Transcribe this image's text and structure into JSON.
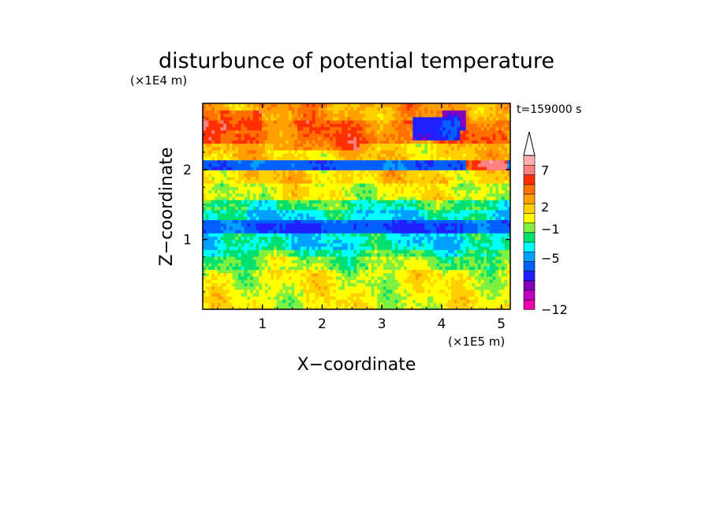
{
  "chart_data": {
    "type": "heatmap",
    "title": "disturbunce of potential temperature",
    "xlabel": "X−coordinate",
    "ylabel": "Z−coordinate",
    "x_scale_label": "(×1E5 m)",
    "y_scale_label": "(×1E4 m)",
    "time_label": "t=159000 s",
    "xlim": [
      0,
      5.15
    ],
    "ylim": [
      0,
      2.95
    ],
    "x_ticks": [
      1,
      2,
      3,
      4,
      5
    ],
    "x_tick_labels": [
      "1",
      "2",
      "3",
      "4",
      "5"
    ],
    "y_ticks": [
      1,
      2
    ],
    "y_tick_labels": [
      "1",
      "2"
    ],
    "colorbar": {
      "bands": [
        {
          "low": -12,
          "high": -11,
          "color": "#ee00aa"
        },
        {
          "low": -11,
          "high": -9,
          "color": "#c000c0"
        },
        {
          "low": -9,
          "high": -7,
          "color": "#8000c0"
        },
        {
          "low": -7,
          "high": -5,
          "color": "#2020ff"
        },
        {
          "low": -5,
          "high": -3,
          "color": "#0060ff"
        },
        {
          "low": -3,
          "high": -1,
          "color": "#00a0ff"
        },
        {
          "low": -1,
          "high": 0,
          "color": "#00ffff"
        },
        {
          "low": 0,
          "high": 1,
          "color": "#00e070"
        },
        {
          "low": 1,
          "high": 2,
          "color": "#80f040"
        },
        {
          "low": 2,
          "high": 3,
          "color": "#ffff00"
        },
        {
          "low": 3,
          "high": 4,
          "color": "#ffd000"
        },
        {
          "low": 4,
          "high": 5,
          "color": "#ffa000"
        },
        {
          "low": 5,
          "high": 6,
          "color": "#ff7000"
        },
        {
          "low": 6,
          "high": 7,
          "color": "#ff3000"
        },
        {
          "low": 7,
          "high": 8,
          "color": "#ff8080"
        },
        {
          "low": 8,
          "high": 9,
          "color": "#ffb0b0"
        }
      ],
      "labels": [
        "7",
        "2",
        "−1",
        "−5",
        "−12"
      ],
      "label_values": [
        7,
        2,
        -1,
        -5,
        -12
      ],
      "extend": "max"
    },
    "zones": [
      {
        "z": [
          0.0,
          0.3
        ],
        "value": 2.5,
        "pattern": "patchy"
      },
      {
        "z": [
          0.3,
          0.58
        ],
        "value": 2.5
      },
      {
        "z": [
          0.58,
          0.75
        ],
        "value": 1.5
      },
      {
        "z": [
          0.75,
          0.85
        ],
        "value": 0.5
      },
      {
        "z": [
          0.85,
          1.1
        ],
        "value": -0.5
      },
      {
        "z": [
          1.1,
          1.28
        ],
        "value": -4.0
      },
      {
        "z": [
          1.28,
          1.42
        ],
        "value": -0.5
      },
      {
        "z": [
          1.42,
          1.58
        ],
        "value": 0.5
      },
      {
        "z": [
          1.58,
          1.8
        ],
        "value": 2.5
      },
      {
        "z": [
          1.8,
          1.98
        ],
        "value": 3.5
      },
      {
        "z": [
          1.98,
          2.12
        ],
        "value": -4.0,
        "pattern": "band"
      },
      {
        "z": [
          2.12,
          2.4
        ],
        "value": 3.5
      },
      {
        "z": [
          2.4,
          2.7
        ],
        "value": 5.5
      },
      {
        "z": [
          2.7,
          2.95
        ],
        "value": 4.5
      }
    ],
    "features": [
      {
        "x": [
          0.3,
          1.0
        ],
        "z": [
          2.55,
          2.85
        ],
        "value": 6.5
      },
      {
        "x": [
          4.0,
          4.4
        ],
        "z": [
          2.55,
          2.85
        ],
        "value": -8.0
      },
      {
        "x": [
          3.5,
          4.3
        ],
        "z": [
          2.45,
          2.75
        ],
        "value": -6.0
      },
      {
        "x": [
          4.4,
          5.1
        ],
        "z": [
          2.0,
          2.15
        ],
        "value": 6.5
      },
      {
        "x": [
          0.5,
          1.2
        ],
        "z": [
          2.0,
          2.15
        ],
        "value": -4.0
      },
      {
        "x": [
          1.2,
          2.6
        ],
        "z": [
          2.3,
          2.55
        ],
        "value": 5.5
      },
      {
        "x": [
          0.7,
          4.6
        ],
        "z": [
          1.1,
          1.26
        ],
        "value": -5.0
      }
    ]
  }
}
